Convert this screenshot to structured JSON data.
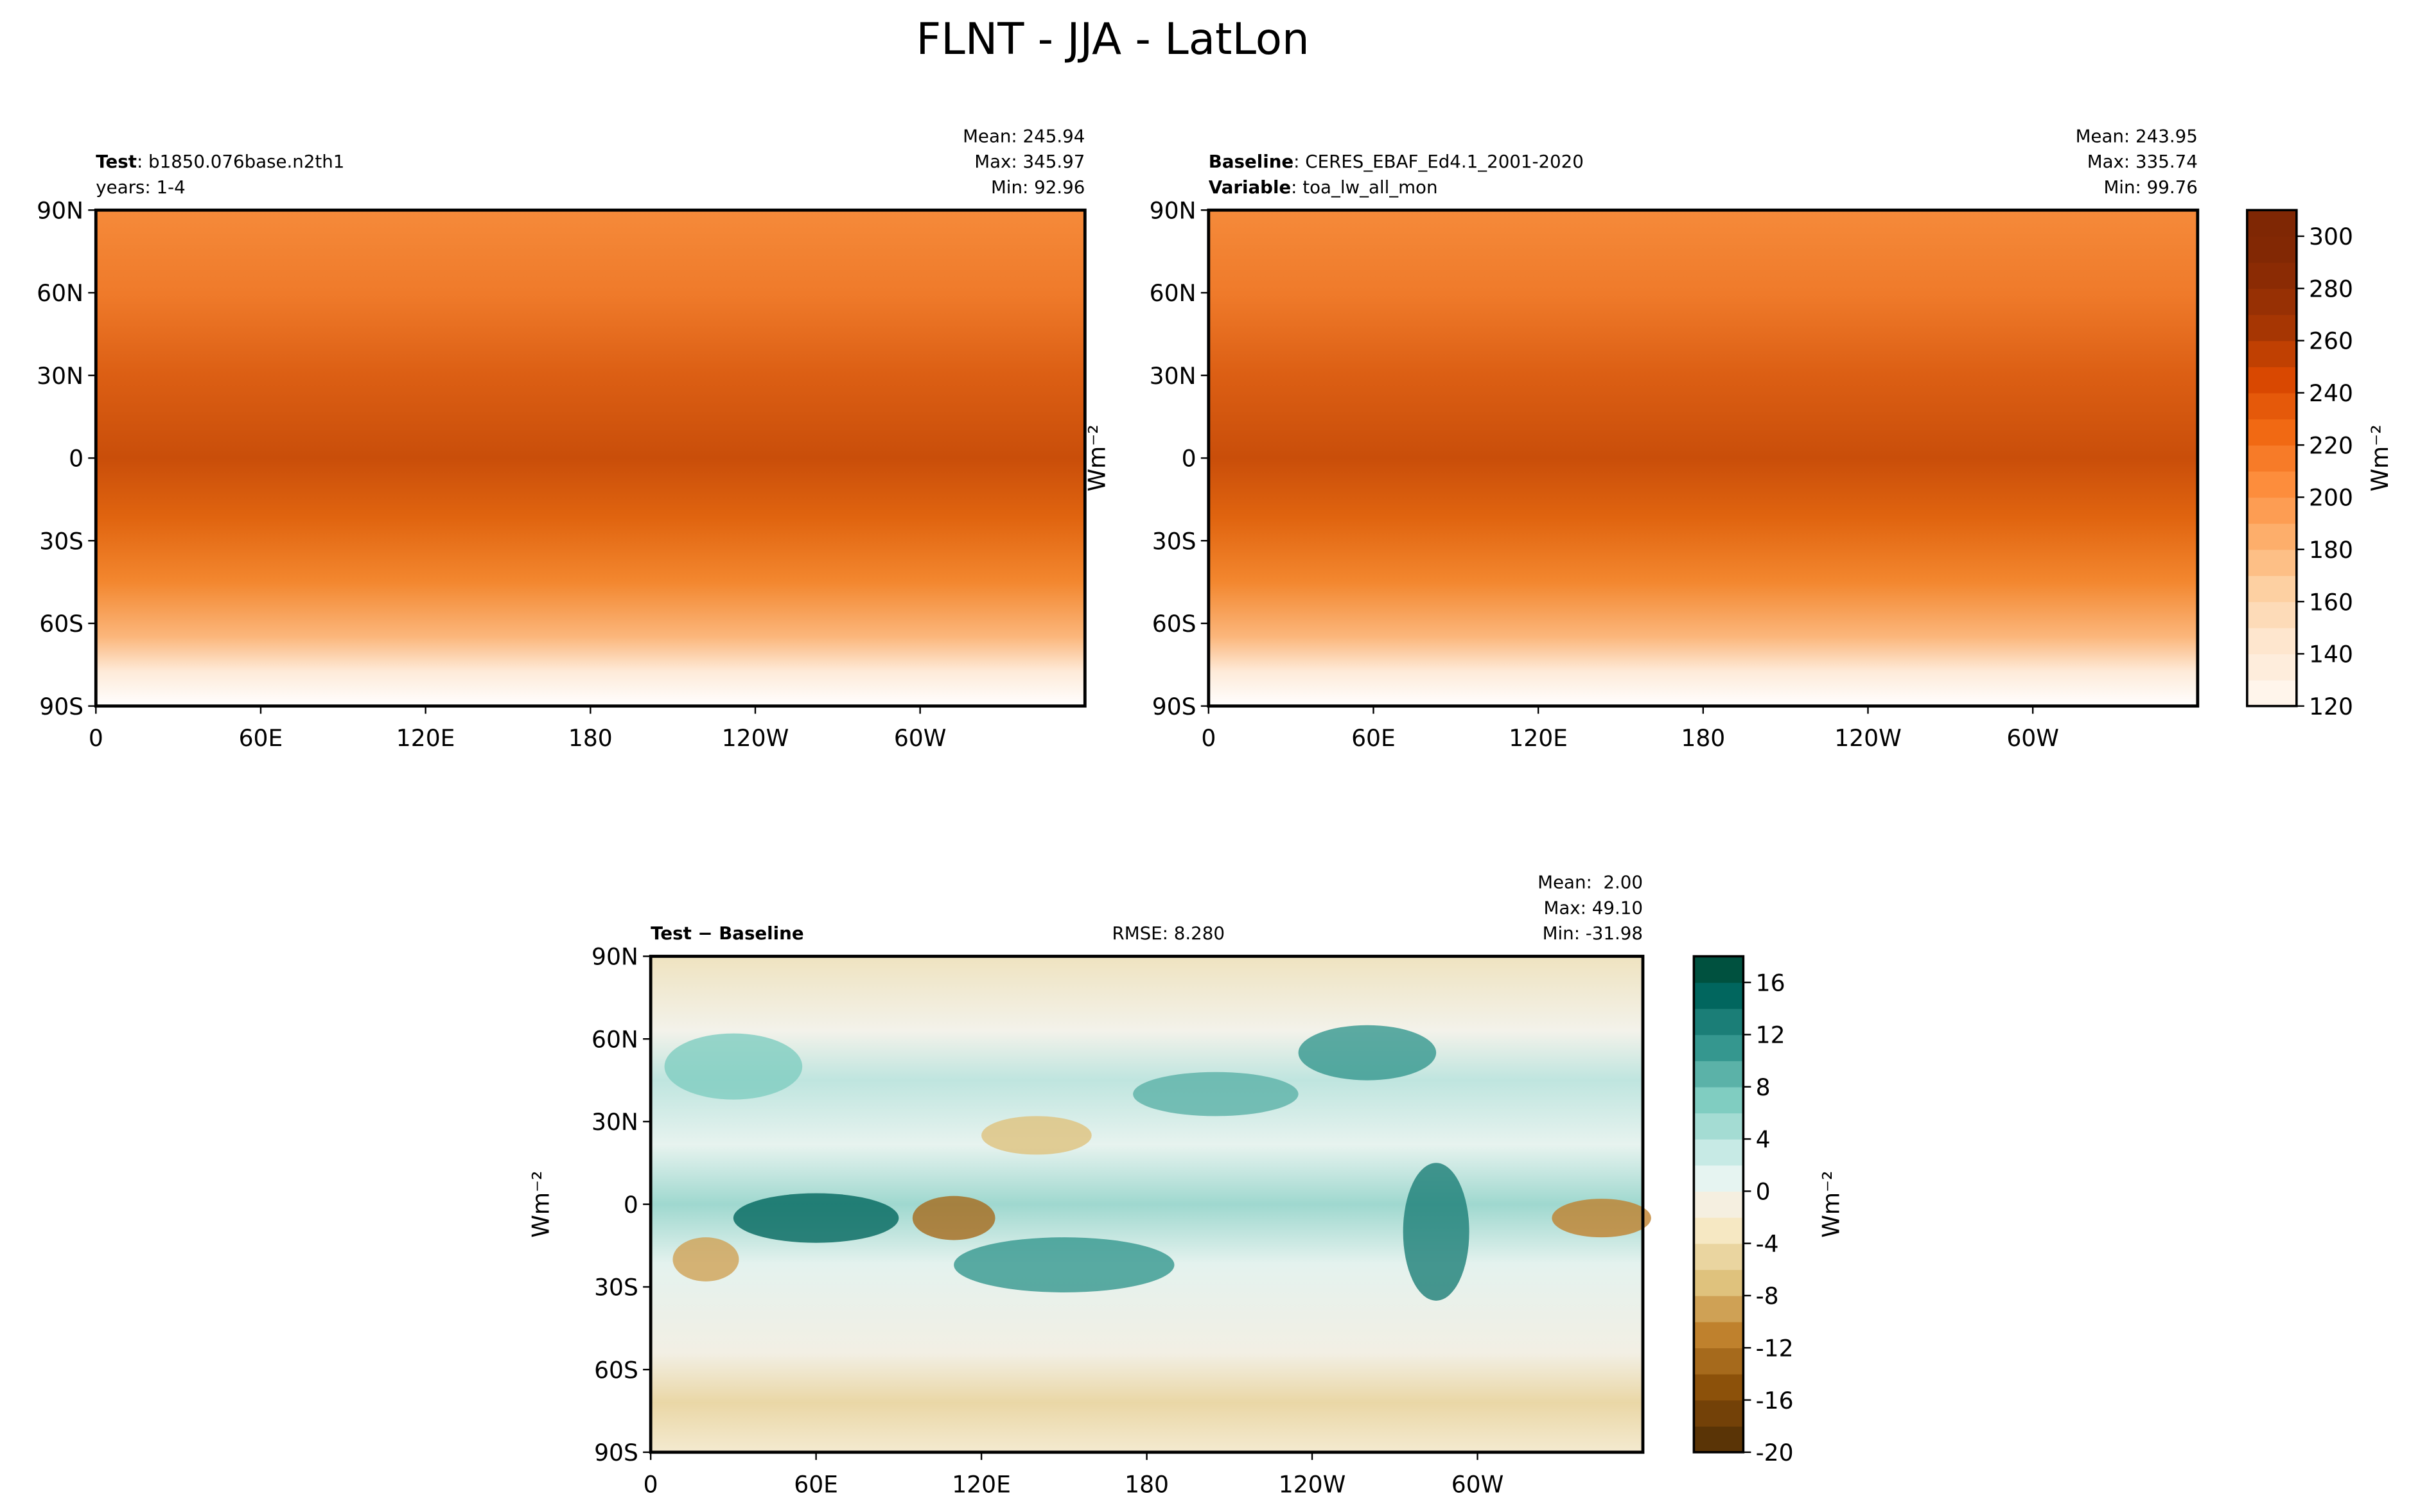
{
  "title": "FLNT - JJA - LatLon",
  "chart_data": [
    {
      "type": "contour-map",
      "left_lines": [
        [
          {
            "text": "Test",
            "bold": true
          },
          {
            "text": ": b1850.076base.n2th1"
          }
        ],
        [
          {
            "text": "years: 1-4"
          }
        ]
      ],
      "stats": [
        "Mean: 245.94",
        "Max: 345.97",
        "Min: 92.96"
      ],
      "xlim": [
        0,
        360
      ],
      "ylim": [
        -90,
        90
      ],
      "xticks": [
        0,
        {
          "value": 60,
          "label": "60E"
        },
        {
          "value": 120,
          "label": "120E"
        },
        180,
        {
          "value": 240,
          "label": "120W"
        },
        {
          "value": 300,
          "label": "60W"
        }
      ],
      "yticks": [
        {
          "value": -90,
          "label": "90S"
        },
        {
          "value": -60,
          "label": "60S"
        },
        {
          "value": -30,
          "label": "30S"
        },
        0,
        {
          "value": 30,
          "label": "30N"
        },
        {
          "value": 60,
          "label": "60N"
        },
        {
          "value": 90,
          "label": "90N"
        }
      ]
    },
    {
      "type": "contour-map",
      "left_lines": [
        [
          {
            "text": "Baseline",
            "bold": true
          },
          {
            "text": ": CERES_EBAF_Ed4.1_2001-2020"
          }
        ],
        [
          {
            "text": "Variable",
            "bold": true
          },
          {
            "text": ": toa_lw_all_mon"
          }
        ]
      ],
      "stats": [
        "Mean: 243.95",
        "Max: 335.74",
        "Min: 99.76"
      ],
      "ylabel": "Wm⁻²",
      "xlim": [
        0,
        360
      ],
      "ylim": [
        -90,
        90
      ],
      "xticks": [
        0,
        {
          "value": 60,
          "label": "60E"
        },
        {
          "value": 120,
          "label": "120E"
        },
        180,
        {
          "value": 240,
          "label": "120W"
        },
        {
          "value": 300,
          "label": "60W"
        }
      ],
      "yticks": [
        {
          "value": -90,
          "label": "90S"
        },
        {
          "value": -60,
          "label": "60S"
        },
        {
          "value": -30,
          "label": "30S"
        },
        0,
        {
          "value": 30,
          "label": "30N"
        },
        {
          "value": 60,
          "label": "60N"
        },
        {
          "value": 90,
          "label": "90N"
        }
      ],
      "colorbar": {
        "label": "Wm⁻²",
        "lim": [
          120,
          310
        ],
        "levels": [
          120,
          130,
          140,
          150,
          160,
          170,
          180,
          190,
          200,
          210,
          220,
          230,
          240,
          250,
          260,
          270,
          280,
          290,
          300,
          310
        ],
        "colors": [
          "#fff5eb",
          "#feeddc",
          "#fee6ce",
          "#fddbb8",
          "#fdd0a2",
          "#fdbf86",
          "#fdae6b",
          "#fd9d53",
          "#fd8d3c",
          "#f77b28",
          "#f16913",
          "#e5590a",
          "#d94801",
          "#c04002",
          "#a63603",
          "#973004",
          "#8b2b04",
          "#822804",
          "#7f2704"
        ],
        "ticks": [
          120,
          140,
          160,
          180,
          200,
          220,
          240,
          260,
          280,
          300
        ]
      }
    },
    {
      "type": "contour-map",
      "left_lines": [
        [
          {
            "text": "Test − Baseline",
            "bold": true
          }
        ]
      ],
      "center_text": "RMSE: 8.280",
      "stats": [
        "Mean:  2.00",
        "Max: 49.10",
        "Min: -31.98"
      ],
      "ylabel": "Wm⁻²",
      "xlim": [
        0,
        360
      ],
      "ylim": [
        -90,
        90
      ],
      "xticks": [
        0,
        {
          "value": 60,
          "label": "60E"
        },
        {
          "value": 120,
          "label": "120E"
        },
        180,
        {
          "value": 240,
          "label": "120W"
        },
        {
          "value": 300,
          "label": "60W"
        }
      ],
      "yticks": [
        {
          "value": -90,
          "label": "90S"
        },
        {
          "value": -60,
          "label": "60S"
        },
        {
          "value": -30,
          "label": "30S"
        },
        0,
        {
          "value": 30,
          "label": "30N"
        },
        {
          "value": 60,
          "label": "60N"
        },
        {
          "value": 90,
          "label": "90N"
        }
      ],
      "colorbar": {
        "label": "Wm⁻²",
        "lim": [
          -20,
          18
        ],
        "levels": [
          -20,
          -18,
          -16,
          -14,
          -12,
          -10,
          -8,
          -6,
          -4,
          -2,
          0,
          2,
          4,
          6,
          8,
          10,
          12,
          14,
          16,
          18
        ],
        "colors": [
          "#5a3406",
          "#734108",
          "#8c510a",
          "#a66a1c",
          "#bf812d",
          "#cfa155",
          "#dfc27d",
          "#ead5a0",
          "#f6e8c3",
          "#f5efe0",
          "#e6f4f1",
          "#c7eae5",
          "#a4dcd3",
          "#80cdc1",
          "#5bb2a8",
          "#35978f",
          "#1b7e77",
          "#01665e",
          "#00513f"
        ],
        "ticks": [
          -20,
          -16,
          -12,
          -8,
          -4,
          0,
          4,
          8,
          12,
          16
        ]
      }
    }
  ]
}
